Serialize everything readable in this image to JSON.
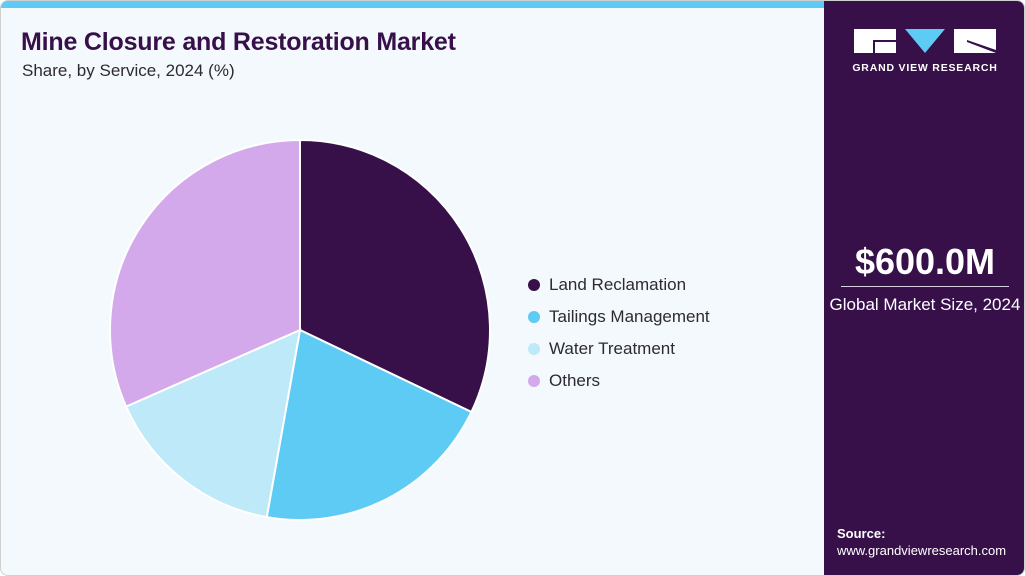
{
  "header": {
    "title": "Mine Closure and Restoration Market",
    "subtitle": "Share, by Service, 2024 (%)"
  },
  "legend": {
    "items": [
      {
        "label": "Land Reclamation",
        "color": "#37104a"
      },
      {
        "label": "Tailings Management",
        "color": "#5ecbf5"
      },
      {
        "label": "Water Treatment",
        "color": "#bde9f9"
      },
      {
        "label": "Others",
        "color": "#d4a9eb"
      }
    ]
  },
  "sidebar": {
    "brand": "GRAND VIEW RESEARCH",
    "market_value": "$600.0M",
    "market_label": "Global Market Size, 2024",
    "source_label": "Source:",
    "source_url": "www.grandviewresearch.com"
  },
  "colors": {
    "accent_bar": "#5ecbf5",
    "sidebar_bg": "#37104a",
    "page_bg": "#f3f9fc"
  },
  "chart_data": {
    "type": "pie",
    "title": "Mine Closure and Restoration Market",
    "subtitle": "Share, by Service, 2024 (%)",
    "categories": [
      "Land Reclamation",
      "Tailings Management",
      "Water Treatment",
      "Others"
    ],
    "values": [
      32.1,
      20.7,
      15.6,
      31.6
    ],
    "colors": [
      "#37104a",
      "#5ecbf5",
      "#bde9f9",
      "#d4a9eb"
    ],
    "start_angle": "12 o'clock, clockwise",
    "legend_position": "right",
    "data_labels": false
  }
}
